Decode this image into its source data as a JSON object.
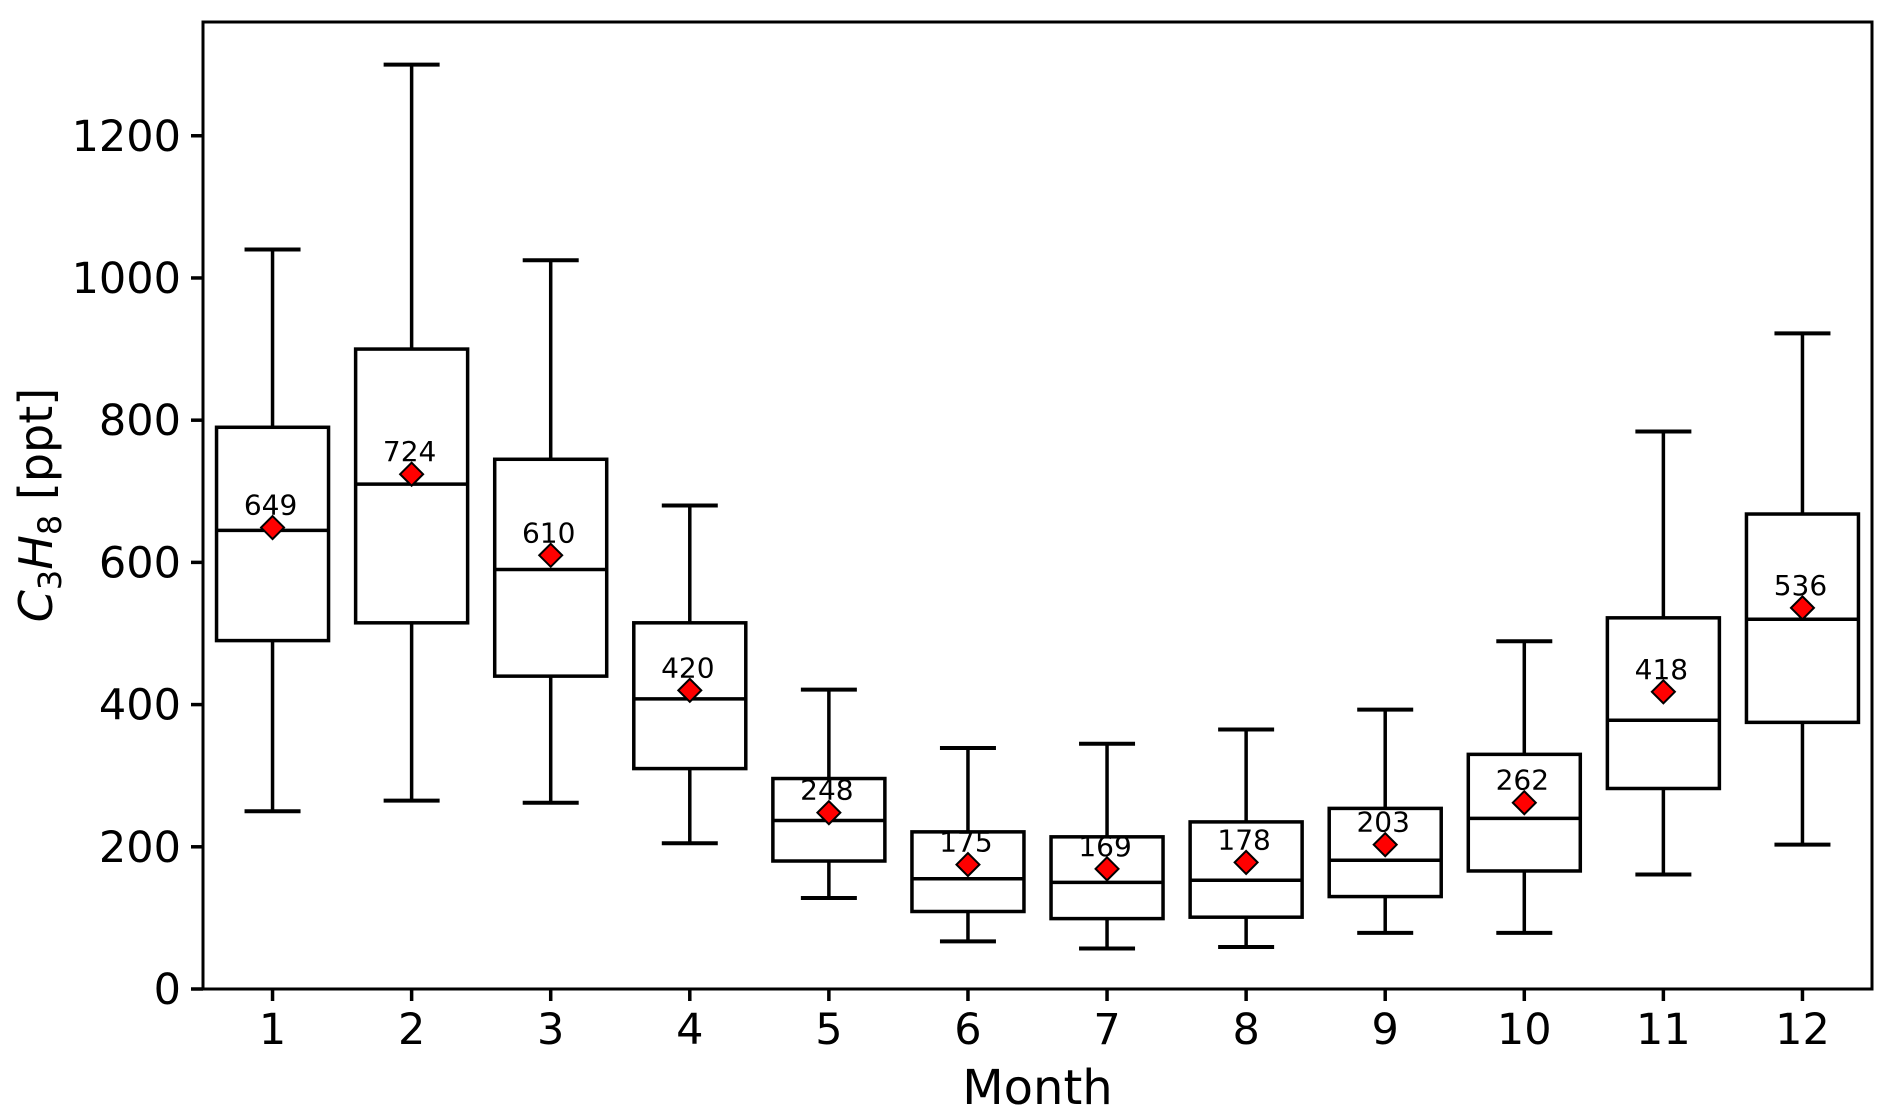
{
  "chart_data": {
    "type": "boxplot",
    "title": "",
    "xlabel": "Month",
    "ylabel": "C3H8 [ppt]",
    "ylabel_parts": [
      {
        "t": "C",
        "style": "italic"
      },
      {
        "t": "3",
        "style": "sub"
      },
      {
        "t": "H",
        "style": "italic"
      },
      {
        "t": "8",
        "style": "sub"
      },
      {
        "t": " [ppt]",
        "style": "normal"
      }
    ],
    "categories": [
      "1",
      "2",
      "3",
      "4",
      "5",
      "6",
      "7",
      "8",
      "9",
      "10",
      "11",
      "12"
    ],
    "ylim": [
      0,
      1360
    ],
    "yticks": [
      0,
      200,
      400,
      600,
      800,
      1000,
      1200
    ],
    "grid": false,
    "legend": null,
    "marker_meaning": "mean value shown as red diamond with numeric label",
    "series": [
      {
        "month": "1",
        "whislo": 250,
        "q1": 490,
        "med": 645,
        "q3": 790,
        "whishi": 1040,
        "mean": 649,
        "mean_label": "649"
      },
      {
        "month": "2",
        "whislo": 265,
        "q1": 515,
        "med": 710,
        "q3": 900,
        "whishi": 1300,
        "mean": 724,
        "mean_label": "724"
      },
      {
        "month": "3",
        "whislo": 262,
        "q1": 440,
        "med": 590,
        "q3": 745,
        "whishi": 1025,
        "mean": 610,
        "mean_label": "610"
      },
      {
        "month": "4",
        "whislo": 205,
        "q1": 310,
        "med": 408,
        "q3": 515,
        "whishi": 680,
        "mean": 420,
        "mean_label": "420"
      },
      {
        "month": "5",
        "whislo": 128,
        "q1": 180,
        "med": 237,
        "q3": 296,
        "whishi": 421,
        "mean": 248,
        "mean_label": "248"
      },
      {
        "month": "6",
        "whislo": 67,
        "q1": 109,
        "med": 155,
        "q3": 221,
        "whishi": 339,
        "mean": 175,
        "mean_label": "175"
      },
      {
        "month": "7",
        "whislo": 57,
        "q1": 99,
        "med": 150,
        "q3": 214,
        "whishi": 345,
        "mean": 169,
        "mean_label": "169"
      },
      {
        "month": "8",
        "whislo": 59,
        "q1": 101,
        "med": 153,
        "q3": 235,
        "whishi": 365,
        "mean": 178,
        "mean_label": "178"
      },
      {
        "month": "9",
        "whislo": 79,
        "q1": 130,
        "med": 181,
        "q3": 254,
        "whishi": 393,
        "mean": 203,
        "mean_label": "203"
      },
      {
        "month": "10",
        "whislo": 79,
        "q1": 166,
        "med": 240,
        "q3": 330,
        "whishi": 489,
        "mean": 262,
        "mean_label": "262"
      },
      {
        "month": "11",
        "whislo": 161,
        "q1": 282,
        "med": 378,
        "q3": 522,
        "whishi": 784,
        "mean": 418,
        "mean_label": "418"
      },
      {
        "month": "12",
        "whislo": 203,
        "q1": 375,
        "med": 520,
        "q3": 668,
        "whishi": 922,
        "mean": 536,
        "mean_label": "536"
      }
    ]
  },
  "colors": {
    "background": "#ffffff",
    "box_fill": "#ffffff",
    "line": "#000000",
    "text": "#000000",
    "mean_marker_fill": "#ff0000",
    "mean_marker_edge": "#000000"
  }
}
